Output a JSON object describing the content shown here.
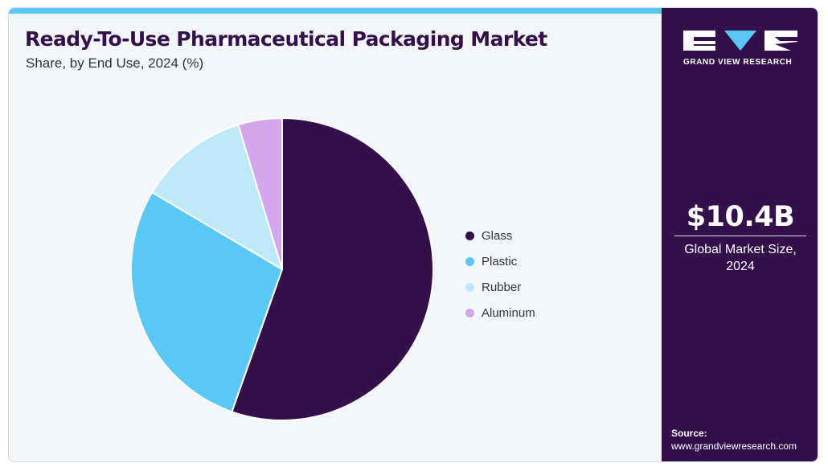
{
  "header": {
    "title": "Ready-To-Use Pharmaceutical Packaging Market",
    "subtitle": "Share, by End Use, 2024 (%)"
  },
  "sidebar": {
    "logo_icon": "gvr-logo-icon",
    "logo_text": "GRAND VIEW RESEARCH",
    "market_value": "$10.4B",
    "market_label_line1": "Global Market Size,",
    "market_label_line2": "2024",
    "source_label": "Source:",
    "source_url": "www.grandviewresearch.com"
  },
  "colors": {
    "accent": "#5bc8f4",
    "brand_dark": "#34104a"
  },
  "chart_data": {
    "type": "pie",
    "title": "Ready-To-Use Pharmaceutical Packaging Market",
    "subtitle": "Share, by End Use, 2024 (%)",
    "legend_position": "right",
    "start_angle_deg": 0,
    "direction": "clockwise",
    "slices": [
      {
        "label": "Glass",
        "value": 55.4,
        "color": "#34104a"
      },
      {
        "label": "Plastic",
        "value": 28.1,
        "color": "#5bc8f4"
      },
      {
        "label": "Rubber",
        "value": 11.8,
        "color": "#bde9f9"
      },
      {
        "label": "Aluminum",
        "value": 4.7,
        "color": "#d4a6ec"
      }
    ]
  }
}
